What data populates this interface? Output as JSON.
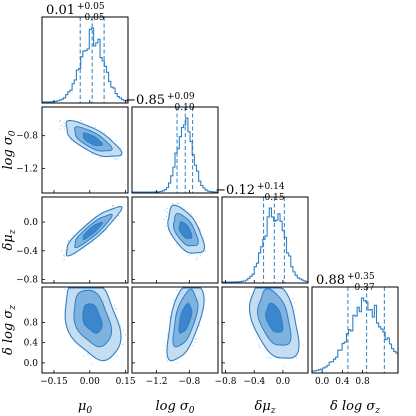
{
  "chart_data": {
    "type": "corner",
    "parameters": [
      {
        "key": "mu0",
        "label": "μ0",
        "label_main": "μ",
        "label_sub": "0",
        "label_prefix": "",
        "title": "0.01",
        "upper": "+0.05",
        "lower": "−0.05",
        "median": 0.01,
        "q16": -0.04,
        "q84": 0.06,
        "range": [
          -0.2,
          0.16
        ],
        "ticks": [
          -0.15,
          0.0,
          0.15
        ],
        "tick_labels": [
          "−0.15",
          "0.00",
          "0.15"
        ]
      },
      {
        "key": "logsigma0",
        "label": "log σ0",
        "label_main": "log σ",
        "label_sub": "0",
        "label_prefix": "",
        "title": "−0.85",
        "upper": "+0.09",
        "lower": "−0.10",
        "median": -0.85,
        "q16": -0.95,
        "q84": -0.76,
        "range": [
          -1.5,
          -0.45
        ],
        "ticks": [
          -1.2,
          -0.8
        ],
        "tick_labels": [
          "−1.2",
          "−0.8"
        ]
      },
      {
        "key": "dmuz",
        "label": "δμz",
        "label_main": "δμ",
        "label_sub": "z",
        "label_prefix": "",
        "title": "−0.12",
        "upper": "+0.14",
        "lower": "−0.15",
        "median": -0.12,
        "q16": -0.27,
        "q84": 0.02,
        "range": [
          -0.85,
          0.35
        ],
        "ticks": [
          -0.8,
          -0.4,
          0.0
        ],
        "tick_labels": [
          "−0.8",
          "−0.4",
          "0.0"
        ]
      },
      {
        "key": "dlogsigmaz",
        "label": "δ log σz",
        "label_main": "δ log σ",
        "label_sub": "z",
        "label_prefix": "",
        "title": "0.88",
        "upper": "+0.35",
        "lower": "−0.37",
        "median": 0.88,
        "q16": 0.51,
        "q84": 1.23,
        "range": [
          -0.2,
          1.5
        ],
        "ticks": [
          0.0,
          0.4,
          0.8
        ],
        "tick_labels": [
          "0.0",
          "0.4",
          "0.8"
        ]
      }
    ],
    "correlations": {
      "1,0": -0.72,
      "2,0": 0.9,
      "2,1": -0.55,
      "3,0": -0.35,
      "3,1": 0.55,
      "3,2": -0.4
    },
    "colors": {
      "line": "#2e7fc7",
      "fill_outer": "#c5ddf1",
      "fill_mid": "#7eb3e0",
      "fill_inner": "#3b86cc"
    }
  }
}
